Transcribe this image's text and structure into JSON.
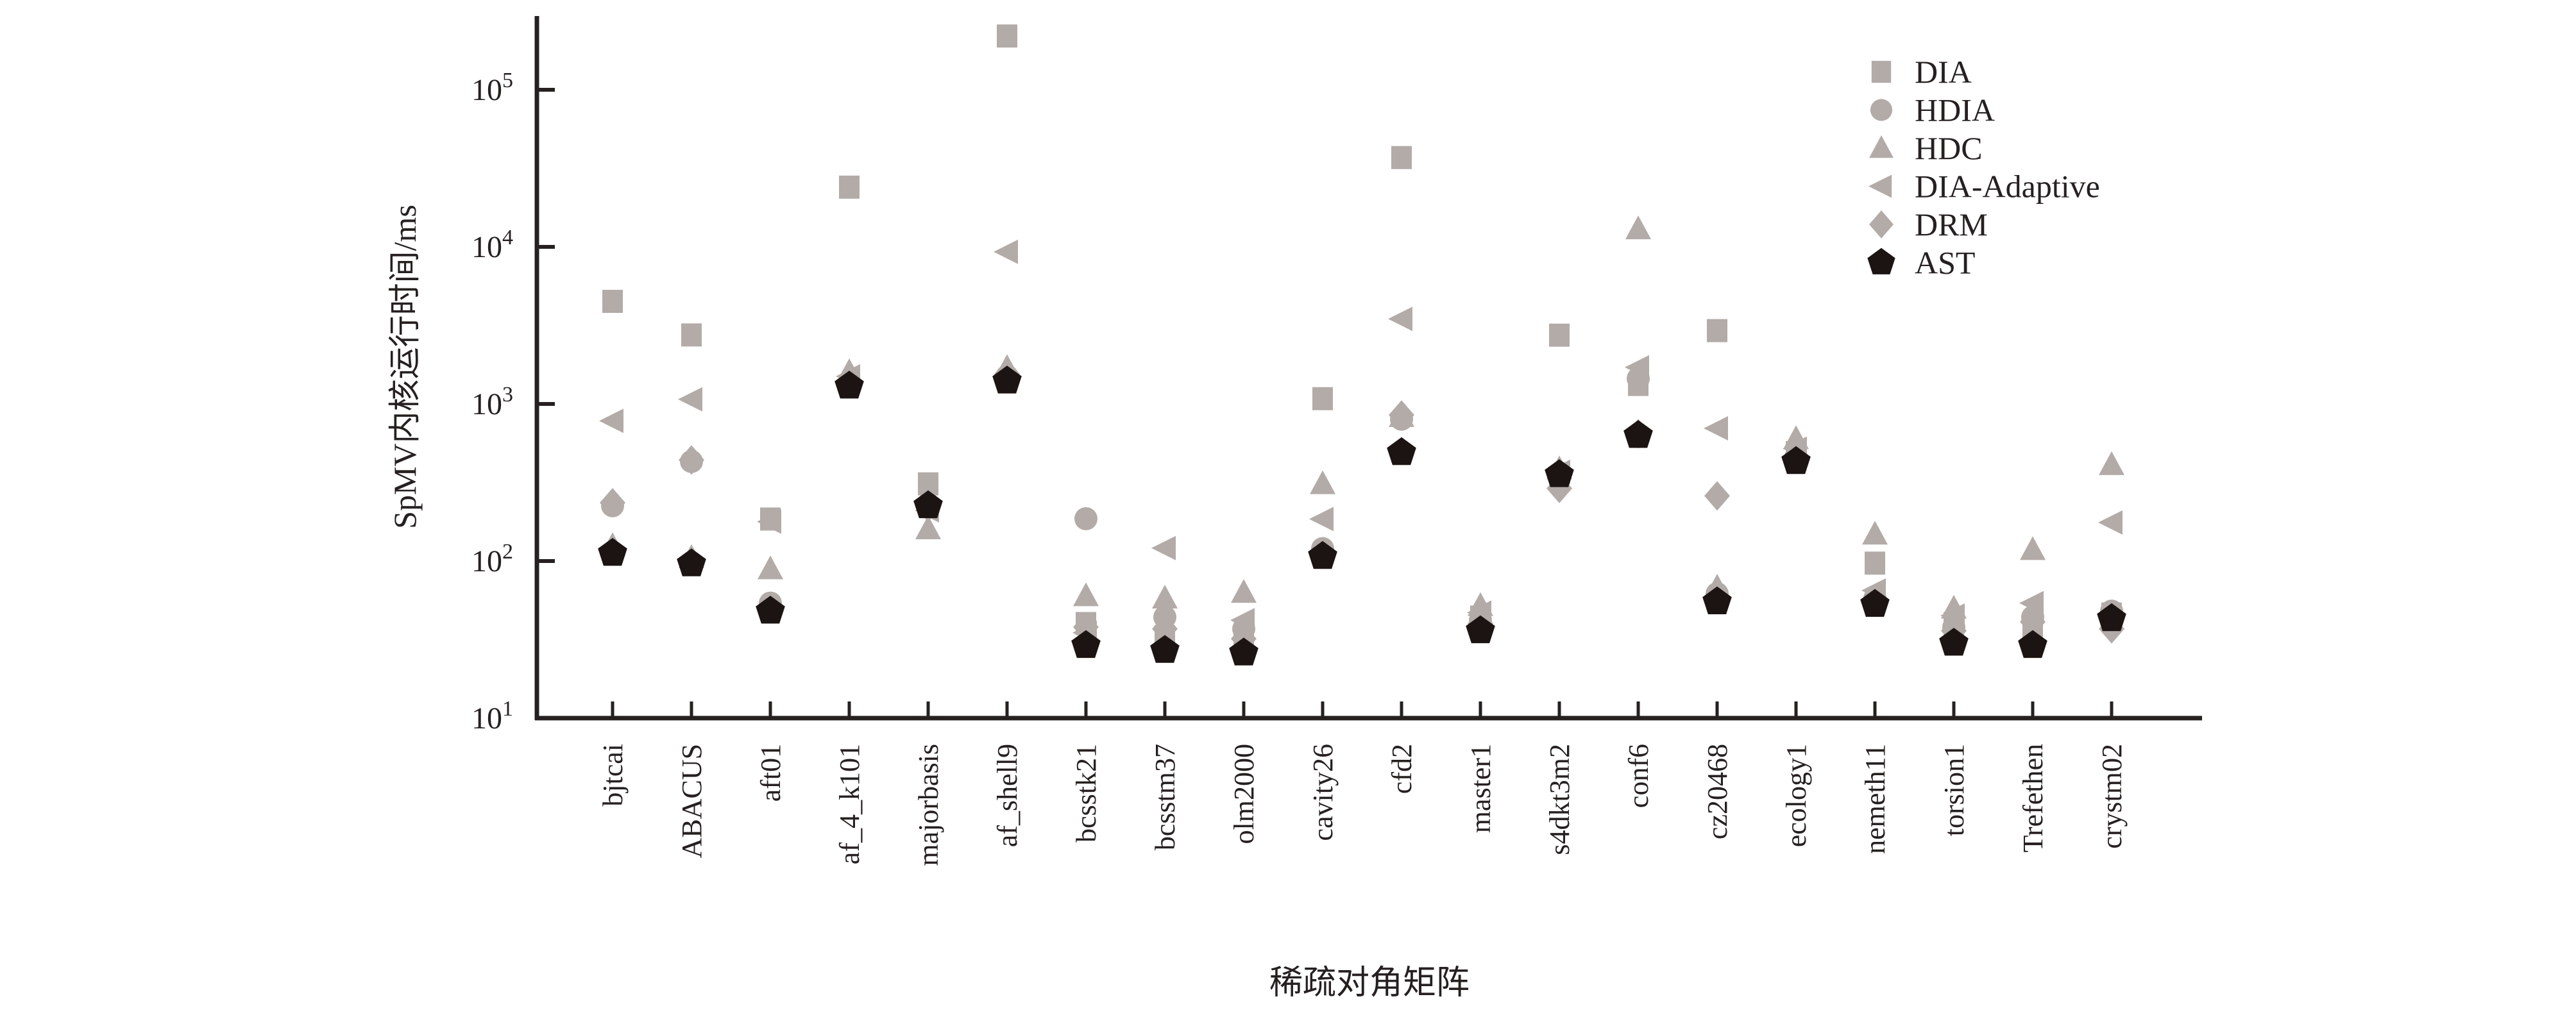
{
  "figure": {
    "background": "#ffffff",
    "axis_color": "#262020",
    "text_color": "#262020",
    "gray_marker_color": "#b3aba8",
    "black_marker_color": "#1b1412",
    "y_tick_exponents": [
      1,
      2,
      3,
      4,
      5
    ],
    "legend_position": "upper right"
  },
  "chart_data": {
    "type": "scatter",
    "title": "",
    "xlabel": "稀疏对角矩阵",
    "ylabel": "SpMV内核运行时间/ms",
    "yscale": "log",
    "ylim": [
      10,
      300000
    ],
    "grid": false,
    "legend_position": "upper right",
    "x_categories": [
      "bjtcai",
      "ABACUS",
      "aft01",
      "af_4_k101",
      "majorbasis",
      "af_shell9",
      "bcsstk21",
      "bcsstm37",
      "olm2000",
      "cavity26",
      "cfd2",
      "master1",
      "s4dkt3m2",
      "conf6",
      "cz20468",
      "ecology1",
      "nemeth11",
      "torsion1",
      "Trefethen",
      "crystm02"
    ],
    "series": [
      {
        "name": "DIA",
        "marker": "square",
        "color": "#b3aba8",
        "values": [
          4500,
          2750,
          185,
          24000,
          310,
          220000,
          40,
          33,
          34,
          1080,
          37000,
          44,
          2740,
          1330,
          2930,
          490,
          97,
          40,
          33,
          46
        ]
      },
      {
        "name": "HDIA",
        "marker": "circle",
        "color": "#b3aba8",
        "values": [
          225,
          430,
          54,
          1350,
          230,
          1500,
          186,
          44,
          37,
          120,
          800,
          42,
          350,
          1450,
          62,
          460,
          58,
          38,
          44,
          48
        ]
      },
      {
        "name": "HDC",
        "marker": "triangle-up",
        "color": "#b3aba8",
        "values": [
          125,
          105,
          89,
          1600,
          160,
          1700,
          60,
          58,
          63,
          310,
          830,
          52,
          385,
          13000,
          68,
          600,
          148,
          50,
          118,
          410
        ]
      },
      {
        "name": "DIA-Adaptive",
        "marker": "triangle-left",
        "color": "#b3aba8",
        "values": [
          780,
          1070,
          178,
          1500,
          210,
          9300,
          35,
          121,
          42,
          185,
          3480,
          47,
          370,
          1710,
          700,
          520,
          65,
          45,
          54,
          176
        ]
      },
      {
        "name": "DRM",
        "marker": "diamond",
        "color": "#b3aba8",
        "values": [
          235,
          440,
          50,
          1400,
          220,
          1550,
          38,
          37,
          32,
          115,
          850,
          40,
          290,
          645,
          260,
          450,
          55,
          36,
          41,
          37
        ]
      },
      {
        "name": "AST",
        "marker": "pentagon",
        "color": "#1b1412",
        "values": [
          112,
          96,
          48,
          1300,
          225,
          1400,
          29,
          27,
          26,
          107,
          490,
          36,
          355,
          630,
          55,
          430,
          53,
          30,
          29,
          43
        ]
      }
    ]
  }
}
